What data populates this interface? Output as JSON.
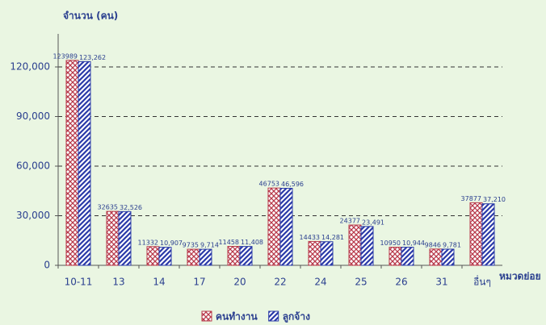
{
  "chart_data": {
    "type": "bar",
    "y_axis_label": "จำนวน (คน)",
    "x_axis_label": "หมวดย่อย",
    "categories": [
      "10-11",
      "13",
      "14",
      "17",
      "20",
      "22",
      "24",
      "25",
      "26",
      "31",
      "อื่นๆ"
    ],
    "series": [
      {
        "name": "คนทำงาน",
        "color": "#b83a4b",
        "pattern": "crosshatch",
        "values": [
          123989,
          32635,
          11332,
          9735,
          11458,
          46753,
          14433,
          24377,
          10950,
          9846,
          37877
        ]
      },
      {
        "name": "ลูกจ้าง",
        "color": "#2a3aa8",
        "pattern": "stripes",
        "values": [
          123262,
          32526,
          10907,
          9714,
          11408,
          46596,
          14281,
          23491,
          10944,
          9781,
          37210
        ],
        "value_labels": [
          "123,262",
          "32,526",
          "10,907",
          "9,714",
          "11,408",
          "46,596",
          "14,281",
          "23,491",
          "10,944",
          "9,781",
          "37,210"
        ]
      }
    ],
    "ylim": [
      0,
      140000
    ],
    "yticks": [
      0,
      {
        "value": 30000,
        "label": "30,000"
      },
      {
        "value": 60000,
        "label": "60,000"
      },
      {
        "value": 90000,
        "label": "90,000"
      },
      {
        "value": 120000,
        "label": "120,000"
      }
    ],
    "grid": true,
    "legend": "bottom"
  }
}
